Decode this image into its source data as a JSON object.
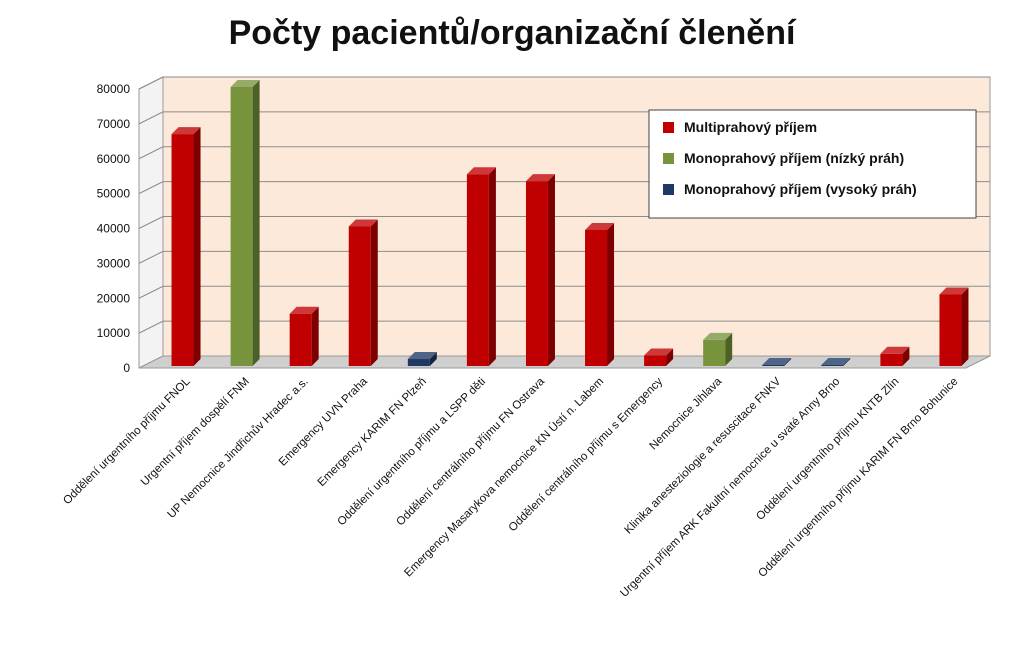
{
  "chart_data": {
    "type": "bar",
    "title": "Počty pacientů/organizační členění",
    "xlabel": "",
    "ylabel": "",
    "ylim": [
      0,
      80000
    ],
    "yticks": [
      0,
      10000,
      20000,
      30000,
      40000,
      50000,
      60000,
      70000,
      80000
    ],
    "grid": true,
    "legend_position": "top-right",
    "legend": [
      {
        "name": "Multiprahový příjem",
        "color": "#c00000"
      },
      {
        "name": "Monoprahový příjem (nízký práh)",
        "color": "#77933c"
      },
      {
        "name": "Monoprahový příjem (vysoký práh)",
        "color": "#1f3864"
      }
    ],
    "categories": [
      "Oddělení urgentního příjmu FNOL",
      "Urgentní příjem dospělí FNM",
      "UP Nemocnice Jindřichův Hradec a.s.",
      "Emergency UVN Praha",
      "Emergency KARIM FN Plzeň",
      "Oddělení urgentního příjmu a LSPP děti",
      "Oddělení centrálního příjmu FN Ostrava",
      "Emergency Masarykova nemocnice KN Ústí n. Labem",
      "Oddělení centrálního příjmu s Emergency",
      "Nemocnice Jihlava",
      "Klinika anesteziologie a resuscitace FNKV",
      "Urgentní příjem ARK Fakultní nemocnice u svaté Anny Brno",
      "Oddělení urgentního příjmu KNTB Zlín",
      "Oddělení urgentního příjmu KARIM FN Brno Bohunice"
    ],
    "values": [
      66500,
      80000,
      15000,
      40000,
      2000,
      55000,
      53000,
      39000,
      3000,
      7500,
      300,
      300,
      3500,
      20500
    ],
    "series_index": [
      0,
      1,
      0,
      0,
      2,
      0,
      0,
      0,
      0,
      1,
      2,
      2,
      0,
      0
    ]
  }
}
